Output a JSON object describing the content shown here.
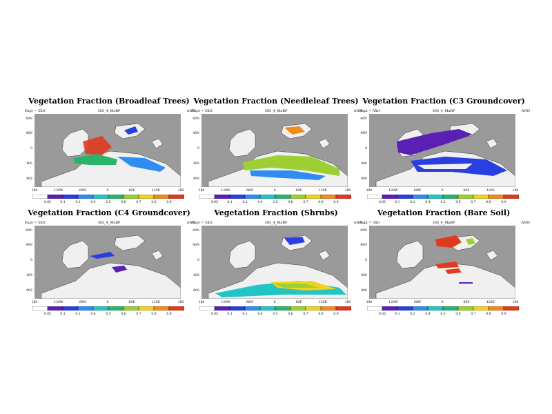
{
  "meta": {
    "left": "Expt = 5Xrl",
    "mid": "305_4_MaBP",
    "right": "ANN"
  },
  "lat_labels": [
    "60N",
    "40N",
    "0",
    "40S",
    "80S"
  ],
  "lon_labels": [
    "180",
    "120W",
    "60W",
    "0",
    "60E",
    "120E",
    "180"
  ],
  "colorbar_labels": [
    "0.05",
    "0.1",
    "0.2",
    "0.4",
    "0.5",
    "0.6",
    "0.7",
    "0.8",
    "0.9"
  ],
  "colorbar_colors": [
    "#ffffff",
    "#5a1fb4",
    "#2a3fe0",
    "#2f8cf0",
    "#22c5c5",
    "#2ab46a",
    "#9ccf33",
    "#f2d21b",
    "#f28a1c",
    "#e03a1e"
  ],
  "colors": {
    "ocean": "#9a9a9a",
    "land": "#f0f0f0"
  },
  "panels": [
    {
      "title": "Vegetation Fraction (Broadleaf Trees)"
    },
    {
      "title": "Vegetation Fraction (Needleleaf Trees)"
    },
    {
      "title": "Vegetation Fraction (C3 Groundcover)"
    },
    {
      "title": "Vegetation Fraction (C4 Groundcover)"
    },
    {
      "title": "Vegetation Fraction (Shrubs)"
    },
    {
      "title": "Vegetation Fraction (Bare Soil)"
    }
  ]
}
